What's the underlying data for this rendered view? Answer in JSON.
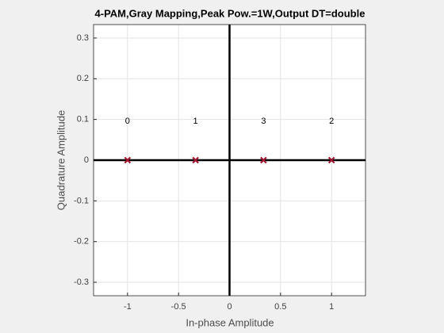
{
  "chart_data": {
    "type": "scatter",
    "title": "4-PAM,Gray Mapping,Peak Pow.=1W,Output DT=double",
    "x_label": "In-phase Amplitude",
    "y_label": "Quadrature Amplitude",
    "x": [
      -1,
      -0.3333,
      0.3333,
      1
    ],
    "values": [
      0,
      0,
      0,
      0
    ],
    "point_labels": [
      "0",
      "1",
      "3",
      "2"
    ],
    "color": "#a2142f",
    "xlim": [
      -1.333,
      1.333
    ],
    "ylim": [
      -0.333,
      0.333
    ],
    "xticks": [
      -1,
      -0.5,
      0,
      0.5,
      1
    ],
    "yticks": [
      -0.3,
      -0.2,
      -0.1,
      0,
      0.1,
      0.2,
      0.3
    ],
    "grid": true
  }
}
